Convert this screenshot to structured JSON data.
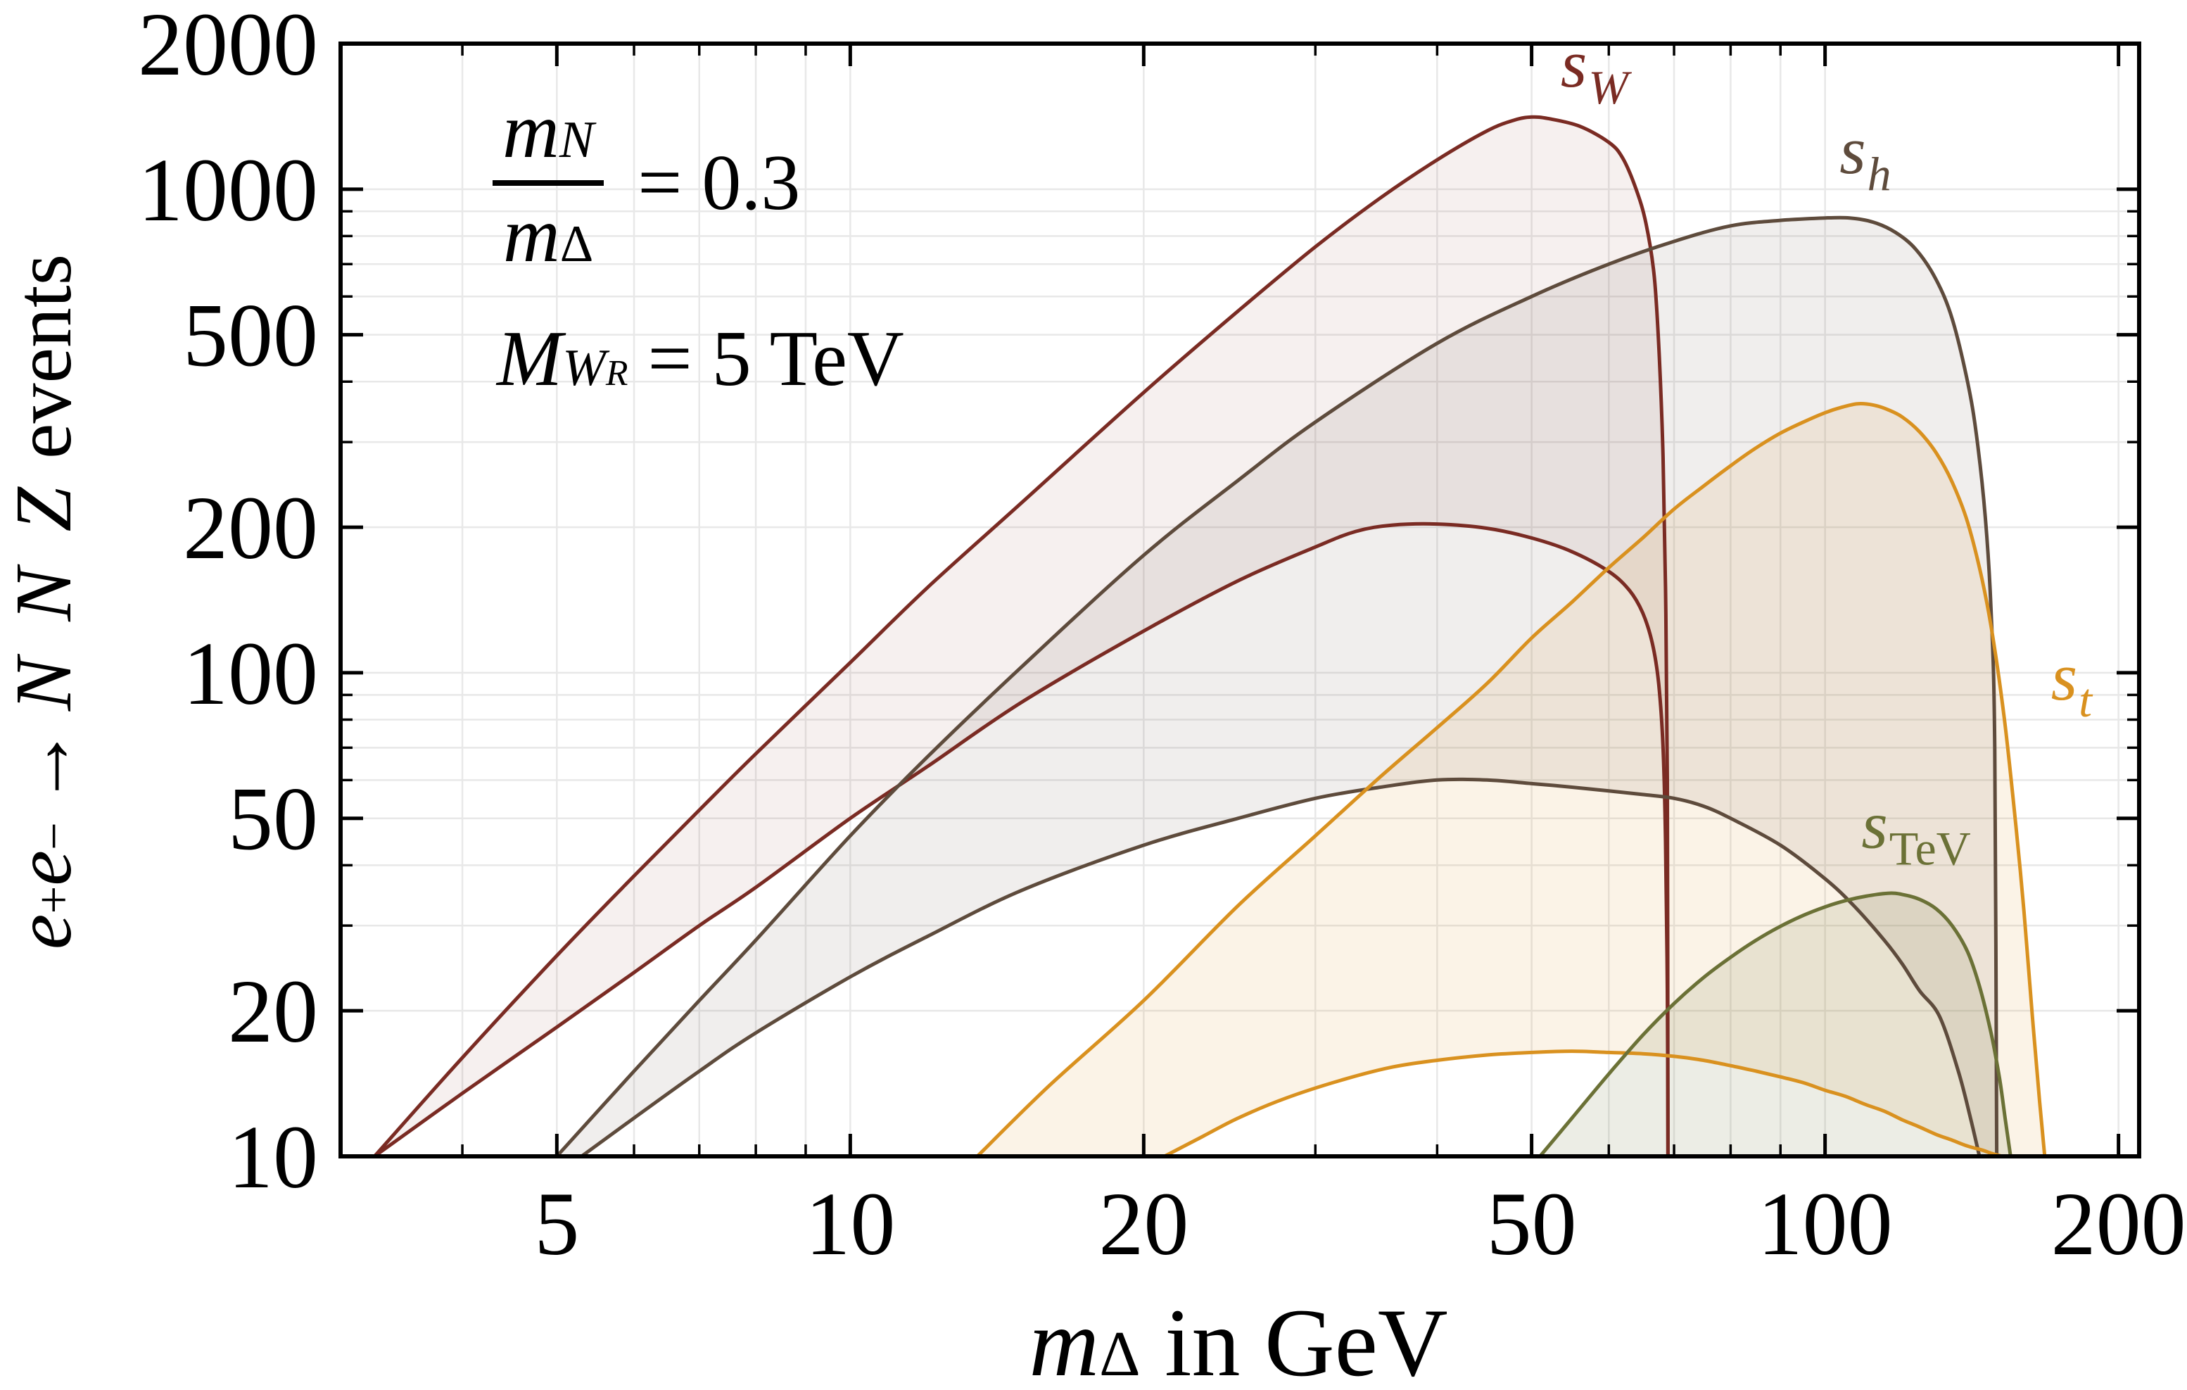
{
  "chart_data": {
    "type": "area",
    "title": "",
    "xlabel": "m_Delta in GeV",
    "ylabel": "e+ e- -> N N Z events",
    "x_axis": {
      "scale": "log",
      "min": 3,
      "max": 210,
      "major_ticks": [
        5,
        10,
        20,
        50,
        100,
        200
      ],
      "minor_ticks": [
        4,
        6,
        7,
        8,
        9,
        30,
        40,
        60,
        70,
        80,
        90
      ],
      "grid": [
        4,
        5,
        6,
        7,
        8,
        9,
        10,
        20,
        30,
        40,
        50,
        60,
        70,
        80,
        90,
        100,
        200
      ]
    },
    "y_axis": {
      "scale": "log",
      "min": 10,
      "max": 2000,
      "major_ticks": [
        10,
        20,
        50,
        100,
        200,
        500,
        1000,
        2000
      ],
      "minor_ticks": [
        30,
        40,
        60,
        70,
        80,
        90,
        300,
        400,
        600,
        700,
        800,
        900
      ],
      "grid": [
        20,
        30,
        40,
        50,
        60,
        70,
        80,
        90,
        100,
        200,
        300,
        400,
        500,
        600,
        700,
        800,
        900,
        1000
      ]
    },
    "grid_color": "#e8e8e8",
    "frame_color": "#000000",
    "series": [
      {
        "id": "sW",
        "label_base": "s",
        "label_sub": "W",
        "label_sub_italic": true,
        "color": "#7a2b23",
        "fill_opacity": 0.07,
        "label_at": [
          58,
          1630
        ],
        "upper": [
          [
            3.25,
            10
          ],
          [
            4,
            16
          ],
          [
            5,
            26
          ],
          [
            6,
            38
          ],
          [
            7,
            52
          ],
          [
            8,
            68
          ],
          [
            10,
            105
          ],
          [
            12,
            150
          ],
          [
            15,
            225
          ],
          [
            20,
            380
          ],
          [
            25,
            560
          ],
          [
            30,
            760
          ],
          [
            35,
            960
          ],
          [
            40,
            1150
          ],
          [
            45,
            1320
          ],
          [
            48,
            1390
          ],
          [
            50,
            1410
          ],
          [
            52,
            1400
          ],
          [
            56,
            1350
          ],
          [
            60,
            1250
          ],
          [
            62,
            1160
          ],
          [
            64,
            1000
          ],
          [
            65.5,
            850
          ],
          [
            66.8,
            660
          ],
          [
            67.6,
            450
          ],
          [
            68.2,
            280
          ],
          [
            68.6,
            150
          ],
          [
            68.9,
            60
          ],
          [
            69,
            10
          ]
        ],
        "lower": [
          [
            3.25,
            10
          ],
          [
            4,
            13.5
          ],
          [
            5,
            18.5
          ],
          [
            6,
            24
          ],
          [
            7,
            30
          ],
          [
            8,
            36
          ],
          [
            10,
            50
          ],
          [
            12,
            64
          ],
          [
            15,
            87
          ],
          [
            20,
            122
          ],
          [
            25,
            155
          ],
          [
            30,
            182
          ],
          [
            33,
            196
          ],
          [
            36,
            202
          ],
          [
            40,
            203
          ],
          [
            45,
            199
          ],
          [
            50,
            190
          ],
          [
            55,
            178
          ],
          [
            60,
            162
          ],
          [
            63,
            148
          ],
          [
            65,
            133
          ],
          [
            66.5,
            115
          ],
          [
            67.5,
            95
          ],
          [
            68.2,
            70
          ],
          [
            68.6,
            45
          ],
          [
            68.9,
            22
          ],
          [
            69,
            10
          ]
        ]
      },
      {
        "id": "sh",
        "label_base": "s",
        "label_sub": "h",
        "label_sub_italic": true,
        "color": "#5e4b3c",
        "fill_opacity": 0.095,
        "label_at": [
          110,
          1080
        ],
        "upper": [
          [
            5,
            10
          ],
          [
            6,
            15
          ],
          [
            7,
            21
          ],
          [
            8,
            28
          ],
          [
            10,
            46
          ],
          [
            12,
            67
          ],
          [
            15,
            103
          ],
          [
            20,
            175
          ],
          [
            25,
            250
          ],
          [
            30,
            330
          ],
          [
            40,
            480
          ],
          [
            50,
            600
          ],
          [
            60,
            700
          ],
          [
            70,
            780
          ],
          [
            80,
            840
          ],
          [
            90,
            862
          ],
          [
            100,
            872
          ],
          [
            106,
            872
          ],
          [
            112,
            855
          ],
          [
            118,
            815
          ],
          [
            124,
            750
          ],
          [
            130,
            650
          ],
          [
            135,
            540
          ],
          [
            140,
            400
          ],
          [
            143,
            310
          ],
          [
            146,
            210
          ],
          [
            148,
            135
          ],
          [
            149.3,
            70
          ],
          [
            150,
            10
          ]
        ],
        "lower": [
          [
            5.3,
            10
          ],
          [
            6,
            12
          ],
          [
            7,
            15
          ],
          [
            8,
            18
          ],
          [
            10,
            23.5
          ],
          [
            12,
            28.5
          ],
          [
            15,
            35.5
          ],
          [
            20,
            44
          ],
          [
            25,
            50
          ],
          [
            30,
            55
          ],
          [
            35,
            58
          ],
          [
            40,
            60
          ],
          [
            45,
            60
          ],
          [
            50,
            59
          ],
          [
            55,
            58
          ],
          [
            60,
            57
          ],
          [
            65,
            56
          ],
          [
            70,
            55
          ],
          [
            75,
            53
          ],
          [
            80,
            50
          ],
          [
            90,
            44
          ],
          [
            100,
            37.5
          ],
          [
            107,
            33
          ],
          [
            115,
            28
          ],
          [
            120,
            25
          ],
          [
            125,
            22
          ],
          [
            131,
            19.5
          ],
          [
            137,
            15
          ],
          [
            141,
            12
          ],
          [
            144,
            10
          ]
        ]
      },
      {
        "id": "st",
        "label_base": "s",
        "label_sub": "t",
        "label_sub_italic": true,
        "color": "#d9911f",
        "fill_opacity": 0.105,
        "label_at": [
          179,
          88
        ],
        "upper": [
          [
            13.5,
            10
          ],
          [
            16,
            14
          ],
          [
            20,
            21
          ],
          [
            25,
            33
          ],
          [
            30,
            46
          ],
          [
            35,
            61
          ],
          [
            40,
            77
          ],
          [
            45,
            95
          ],
          [
            50,
            118
          ],
          [
            55,
            140
          ],
          [
            60,
            165
          ],
          [
            65,
            190
          ],
          [
            70,
            218
          ],
          [
            75,
            243
          ],
          [
            80,
            268
          ],
          [
            85,
            292
          ],
          [
            90,
            313
          ],
          [
            95,
            330
          ],
          [
            100,
            345
          ],
          [
            104,
            354
          ],
          [
            108,
            360
          ],
          [
            112,
            358
          ],
          [
            116,
            350
          ],
          [
            120,
            338
          ],
          [
            125,
            315
          ],
          [
            130,
            285
          ],
          [
            135,
            248
          ],
          [
            140,
            205
          ],
          [
            145,
            155
          ],
          [
            149,
            115
          ],
          [
            153,
            78
          ],
          [
            157,
            48
          ],
          [
            160,
            32
          ],
          [
            163,
            20
          ],
          [
            166,
            13
          ],
          [
            168,
            10
          ]
        ],
        "lower": [
          [
            21,
            10
          ],
          [
            23,
            11
          ],
          [
            25,
            12
          ],
          [
            28,
            13.2
          ],
          [
            32,
            14.4
          ],
          [
            36,
            15.3
          ],
          [
            40,
            15.8
          ],
          [
            45,
            16.2
          ],
          [
            50,
            16.4
          ],
          [
            55,
            16.5
          ],
          [
            60,
            16.4
          ],
          [
            65,
            16.3
          ],
          [
            70,
            16.1
          ],
          [
            75,
            15.8
          ],
          [
            80,
            15.4
          ],
          [
            85,
            15
          ],
          [
            90,
            14.6
          ],
          [
            95,
            14.2
          ],
          [
            100,
            13.7
          ],
          [
            105,
            13.3
          ],
          [
            110,
            12.8
          ],
          [
            115,
            12.4
          ],
          [
            120,
            11.9
          ],
          [
            125,
            11.5
          ],
          [
            130,
            11.1
          ],
          [
            135,
            10.8
          ],
          [
            140,
            10.5
          ],
          [
            145,
            10.3
          ],
          [
            148,
            10.15
          ],
          [
            152,
            10
          ]
        ]
      },
      {
        "id": "sTeV",
        "label_base": "s",
        "label_sub": "TeV",
        "label_sub_italic": false,
        "color": "#6b7136",
        "fill_opacity": 0.13,
        "label_at": [
          124,
          43.5
        ],
        "upper": [
          [
            51,
            10
          ],
          [
            55,
            12
          ],
          [
            60,
            14.8
          ],
          [
            65,
            17.8
          ],
          [
            70,
            20.7
          ],
          [
            75,
            23.4
          ],
          [
            80,
            25.8
          ],
          [
            85,
            28
          ],
          [
            90,
            29.9
          ],
          [
            95,
            31.5
          ],
          [
            100,
            32.8
          ],
          [
            105,
            33.8
          ],
          [
            110,
            34.5
          ],
          [
            116,
            35
          ],
          [
            120,
            34.8
          ],
          [
            125,
            34
          ],
          [
            130,
            32.5
          ],
          [
            135,
            30
          ],
          [
            140,
            26.5
          ],
          [
            144,
            22.5
          ],
          [
            148,
            18
          ],
          [
            151,
            14.5
          ],
          [
            153,
            12
          ],
          [
            155,
            10
          ]
        ],
        "lower": null
      }
    ]
  },
  "annotation": {
    "ratio_num_base": "m",
    "ratio_num_sub": "N",
    "ratio_den_base": "m",
    "ratio_den_sub": "Δ",
    "ratio_value": "= 0.3",
    "wr_base": "M",
    "wr_sub": "W",
    "wr_subsub": "R",
    "wr_value": " = 5 TeV"
  },
  "xlabel": {
    "base": "m",
    "sub": "Δ",
    "suffix": " in GeV"
  },
  "ylabel": {
    "e1": "e",
    "sup_plus": "+",
    "e2": "e",
    "sup_minus": "−",
    "arrow": "→",
    "process": "N N Z",
    "suffix": " events"
  }
}
